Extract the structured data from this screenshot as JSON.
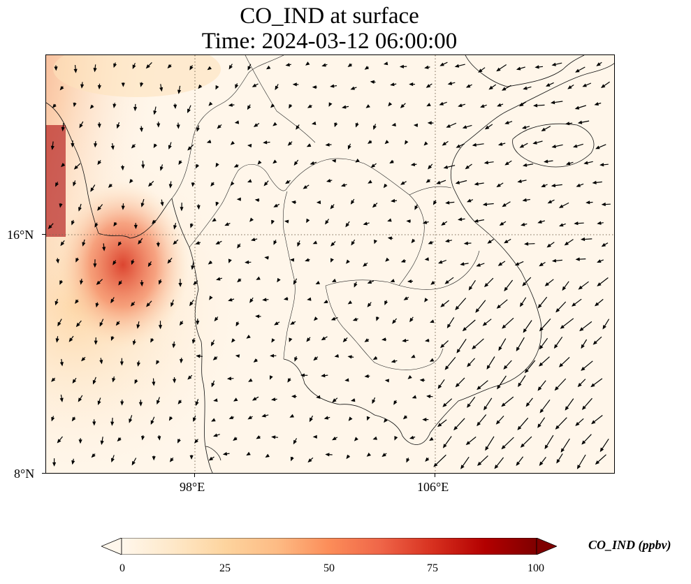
{
  "title": {
    "line1": "CO_IND at surface",
    "line2": "Time: 2024-03-12 06:00:00"
  },
  "map": {
    "lon_range": [
      92,
      111
    ],
    "lat_range": [
      8,
      22
    ],
    "lon_ticks": [
      {
        "value": 98,
        "label": "98°E"
      },
      {
        "value": 106,
        "label": "106°E"
      }
    ],
    "lat_ticks": [
      {
        "value": 8,
        "label": "8°N"
      },
      {
        "value": 16,
        "label": "16°N"
      }
    ],
    "gridlines": "dotted"
  },
  "colorbar": {
    "label": "CO_IND (ppbv)",
    "ticks": [
      "0",
      "25",
      "50",
      "75",
      "100"
    ],
    "colormap": "OrRd",
    "colors": [
      "#fff7ec",
      "#fee8c8",
      "#fdd49e",
      "#fdbb84",
      "#fc8d59",
      "#ef6548",
      "#d7301f",
      "#b30000",
      "#7f0000"
    ],
    "extend": "both"
  }
}
